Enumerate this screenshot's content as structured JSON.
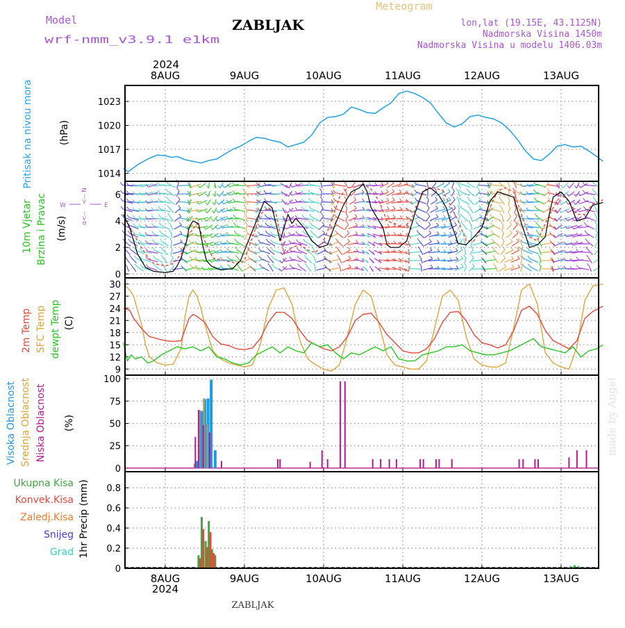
{
  "header": {
    "model_label": "Model",
    "model_name": "wrf-nmm_v3.9.1 e1km",
    "station": "ZABLJAK",
    "title": "Meteogram",
    "coords": "lon,lat (19.15E, 43.1125N)",
    "altitude": "Nadmorska Visina 1450m",
    "model_altitude": "Nadmorska Visina u modelu 1406.03m",
    "credit": "made by Angel",
    "footer_station": "ZABLJAK"
  },
  "colors": {
    "pressure": "#2aa6e6",
    "temp2m": "#e8473a",
    "sfc": "#e0a43a",
    "dewpt": "#26c81f",
    "high_cloud": "#1e9be6",
    "mid_cloud": "#9a9a72",
    "low_cloud": "#b8198c",
    "total_precip": "#3fa83f",
    "conv_precip": "#e8473a",
    "frozen_precip": "#f07a2a",
    "snow": "#4a3ad8",
    "hail": "#3ad0c0",
    "wind_speed": "#000000",
    "wind_gust": "#e8473a",
    "purple_text": "#a855d8",
    "gold_text": "#e6c27a"
  },
  "time_axis": {
    "year": "2024",
    "day_labels": [
      "8AUG",
      "9AUG",
      "10AUG",
      "11AUG",
      "12AUG",
      "13AUG"
    ]
  },
  "wind_compass": {
    "west": "W",
    "east": "E",
    "north_marker": "<-- N",
    "alpha_marker": "α<--"
  },
  "chart_data": [
    {
      "type": "line",
      "panel": "pressure",
      "ylabel": "Pritisak na nivou mora",
      "unit": "(hPa)",
      "yticks": [
        1014,
        1017,
        1020,
        1023
      ],
      "ylim": [
        1013,
        1025
      ],
      "xlim": [
        -0.53,
        5.53
      ],
      "grid": true,
      "series": [
        {
          "name": "Pritisak na nivou mora",
          "x": [
            -0.53,
            -0.47,
            -0.4,
            -0.33,
            -0.2,
            -0.1,
            0.0,
            0.08,
            0.15,
            0.25,
            0.35,
            0.45,
            0.55,
            0.65,
            0.75,
            0.85,
            0.95,
            1.05,
            1.15,
            1.25,
            1.35,
            1.45,
            1.55,
            1.65,
            1.75,
            1.85,
            1.95,
            2.05,
            2.15,
            2.25,
            2.35,
            2.45,
            2.55,
            2.65,
            2.75,
            2.85,
            2.95,
            3.05,
            3.15,
            3.25,
            3.35,
            3.45,
            3.55,
            3.65,
            3.75,
            3.85,
            3.95,
            4.05,
            4.15,
            4.25,
            4.35,
            4.45,
            4.55,
            4.65,
            4.75,
            4.85,
            4.95,
            5.05,
            5.15,
            5.25,
            5.35,
            5.45,
            5.53
          ],
          "y": [
            1014.6,
            1014.2,
            1014.7,
            1015.2,
            1015.9,
            1016.3,
            1016.2,
            1016.0,
            1016.1,
            1015.7,
            1015.5,
            1015.3,
            1015.6,
            1015.8,
            1016.4,
            1017.0,
            1017.4,
            1018.0,
            1018.5,
            1018.4,
            1018.1,
            1017.9,
            1017.3,
            1017.6,
            1017.9,
            1018.8,
            1020.3,
            1021.0,
            1021.1,
            1021.4,
            1022.3,
            1022.0,
            1021.6,
            1021.5,
            1022.2,
            1022.8,
            1024.0,
            1024.3,
            1024.0,
            1023.5,
            1022.8,
            1021.5,
            1020.3,
            1019.8,
            1020.2,
            1021.1,
            1021.3,
            1021.0,
            1020.8,
            1020.3,
            1019.4,
            1018.2,
            1016.8,
            1015.8,
            1015.6,
            1016.4,
            1017.4,
            1017.6,
            1017.3,
            1017.4,
            1016.8,
            1016.1,
            1015.5
          ]
        }
      ]
    },
    {
      "type": "line",
      "panel": "wind",
      "ylabel": "10m Vjetar",
      "ylabel2": "Brzina i Pravac",
      "unit": "(m/s)",
      "yticks": [
        0,
        2,
        4,
        6
      ],
      "ylim": [
        -0.3,
        7
      ],
      "xlim": [
        -0.53,
        5.53
      ],
      "grid": true,
      "series": [
        {
          "name": "speed",
          "x": [
            -0.53,
            -0.45,
            -0.35,
            -0.25,
            -0.15,
            0.0,
            0.1,
            0.15,
            0.2,
            0.27,
            0.3,
            0.35,
            0.42,
            0.48,
            0.52,
            0.58,
            0.7,
            0.85,
            0.95,
            1.05,
            1.15,
            1.25,
            1.35,
            1.45,
            1.55,
            1.6,
            1.65,
            1.75,
            1.85,
            1.95,
            2.05,
            2.15,
            2.25,
            2.35,
            2.45,
            2.5,
            2.55,
            2.6,
            2.7,
            2.75,
            2.8,
            2.85,
            2.95,
            3.05,
            3.15,
            3.25,
            3.35,
            3.45,
            3.55,
            3.6,
            3.7,
            3.8,
            3.9,
            4.0,
            4.1,
            4.2,
            4.3,
            4.4,
            4.5,
            4.6,
            4.7,
            4.8,
            4.85,
            4.9,
            5.0,
            5.1,
            5.2,
            5.3,
            5.4,
            5.53
          ],
          "y": [
            4.5,
            3.5,
            1.5,
            0.5,
            0.2,
            0.1,
            0.2,
            0.6,
            1.2,
            2.5,
            3.5,
            4.0,
            3.8,
            2.0,
            1.0,
            0.6,
            0.3,
            0.4,
            1.0,
            2.5,
            4.0,
            5.5,
            5.0,
            2.5,
            4.5,
            3.8,
            4.2,
            3.5,
            2.5,
            2.0,
            2.2,
            3.8,
            5.2,
            6.2,
            6.5,
            6.8,
            6.2,
            5.0,
            4.0,
            3.5,
            2.2,
            2.0,
            2.0,
            2.5,
            4.5,
            6.2,
            6.5,
            6.0,
            5.0,
            4.0,
            2.3,
            2.2,
            2.8,
            3.5,
            5.5,
            6.2,
            6.0,
            5.8,
            3.8,
            2.0,
            2.2,
            2.8,
            4.5,
            5.8,
            6.2,
            5.5,
            4.0,
            4.2,
            5.2,
            5.4
          ]
        },
        {
          "name": "gust",
          "x": [
            -0.53,
            -0.45,
            -0.35,
            -0.25,
            -0.15,
            0.0,
            0.1,
            0.2,
            0.3,
            0.4,
            0.5,
            0.6,
            0.75,
            0.9,
            1.0,
            1.1,
            1.2,
            1.3,
            1.4,
            1.5,
            1.6,
            1.7,
            1.8,
            1.9,
            2.0,
            2.1,
            2.2,
            2.3,
            2.4,
            2.5,
            2.6,
            2.7,
            2.8,
            2.9,
            3.0,
            3.1,
            3.2,
            3.3,
            3.4,
            3.5,
            3.6,
            3.7,
            3.8,
            3.9,
            4.0,
            4.1,
            4.2,
            4.3,
            4.4,
            4.5,
            4.6,
            4.7,
            4.8,
            4.9,
            5.0,
            5.1,
            5.2,
            5.3,
            5.4,
            5.53
          ],
          "y": [
            3.8,
            3.5,
            2.5,
            1.5,
            0.8,
            0.6,
            0.8,
            1.5,
            3.0,
            3.8,
            2.5,
            1.2,
            1.0,
            0.8,
            1.0,
            2.8,
            4.5,
            5.0,
            4.5,
            1.5,
            2.0,
            2.2,
            1.8,
            1.6,
            2.5,
            4.0,
            5.8,
            6.5,
            6.6,
            6.8,
            6.4,
            5.5,
            4.0,
            3.8,
            3.5,
            4.0,
            5.5,
            6.5,
            6.5,
            6.3,
            5.2,
            4.0,
            2.5,
            2.5,
            3.5,
            5.0,
            6.3,
            6.5,
            6.2,
            4.5,
            2.8,
            2.5,
            3.8,
            5.0,
            6.0,
            5.5,
            4.5,
            4.5,
            5.3,
            5.6
          ]
        }
      ]
    },
    {
      "type": "line",
      "panel": "temperature",
      "ylabel": "2m Temp",
      "ylabel2": "SFC Temp",
      "ylabel3": "dewpt Temp",
      "unit": "(C)",
      "yticks": [
        9,
        12,
        15,
        18,
        21,
        24,
        27,
        30
      ],
      "ylim": [
        7.5,
        31.5
      ],
      "xlim": [
        -0.53,
        5.53
      ],
      "grid": true,
      "series": [
        {
          "name": "2m Temp",
          "x": [
            -0.53,
            -0.45,
            -0.4,
            -0.3,
            -0.2,
            -0.1,
            0.0,
            0.1,
            0.2,
            0.3,
            0.35,
            0.4,
            0.5,
            0.6,
            0.7,
            0.8,
            0.9,
            1.0,
            1.1,
            1.2,
            1.3,
            1.4,
            1.5,
            1.6,
            1.7,
            1.8,
            1.9,
            2.0,
            2.1,
            2.2,
            2.3,
            2.4,
            2.5,
            2.6,
            2.7,
            2.8,
            2.9,
            3.0,
            3.1,
            3.2,
            3.3,
            3.4,
            3.5,
            3.6,
            3.7,
            3.8,
            3.9,
            4.0,
            4.1,
            4.2,
            4.3,
            4.4,
            4.5,
            4.6,
            4.7,
            4.8,
            4.9,
            5.0,
            5.1,
            5.2,
            5.3,
            5.4,
            5.53
          ],
          "y": [
            24.0,
            23.5,
            21.5,
            19.0,
            17.0,
            16.5,
            16.0,
            15.8,
            16.0,
            21.5,
            22.5,
            22.0,
            20.5,
            17.0,
            15.2,
            14.8,
            14.0,
            13.8,
            14.2,
            16.5,
            20.5,
            23.0,
            23.0,
            21.5,
            18.5,
            16.0,
            15.0,
            14.0,
            13.5,
            14.5,
            17.0,
            21.0,
            22.5,
            22.8,
            20.5,
            17.5,
            15.5,
            13.5,
            13.0,
            13.0,
            14.0,
            16.5,
            20.5,
            23.0,
            23.2,
            21.0,
            17.5,
            15.5,
            15.0,
            14.2,
            15.0,
            18.5,
            23.5,
            24.5,
            22.5,
            18.5,
            16.0,
            15.0,
            14.0,
            16.0,
            21.5,
            23.2,
            24.5
          ]
        },
        {
          "name": "SFC Temp",
          "x": [
            -0.53,
            -0.45,
            -0.4,
            -0.3,
            -0.25,
            -0.2,
            -0.1,
            0.0,
            0.1,
            0.2,
            0.25,
            0.3,
            0.35,
            0.4,
            0.45,
            0.5,
            0.6,
            0.7,
            0.8,
            0.9,
            1.0,
            1.1,
            1.2,
            1.3,
            1.4,
            1.5,
            1.6,
            1.7,
            1.8,
            1.9,
            2.0,
            2.1,
            2.2,
            2.3,
            2.4,
            2.5,
            2.6,
            2.7,
            2.8,
            2.9,
            3.0,
            3.1,
            3.2,
            3.3,
            3.4,
            3.5,
            3.6,
            3.7,
            3.8,
            3.9,
            4.0,
            4.1,
            4.2,
            4.3,
            4.4,
            4.5,
            4.6,
            4.7,
            4.8,
            4.9,
            5.0,
            5.1,
            5.2,
            5.3,
            5.4,
            5.53
          ],
          "y": [
            30.0,
            28.5,
            27.0,
            20.0,
            15.0,
            12.0,
            10.5,
            10.0,
            10.2,
            14.0,
            22.0,
            27.0,
            28.5,
            27.0,
            24.0,
            20.0,
            13.5,
            11.5,
            10.5,
            10.0,
            9.5,
            10.0,
            15.0,
            24.0,
            28.5,
            29.0,
            25.0,
            16.0,
            11.5,
            10.0,
            9.0,
            8.5,
            10.0,
            17.0,
            25.0,
            28.5,
            27.0,
            20.0,
            12.5,
            10.0,
            9.5,
            9.0,
            9.0,
            11.0,
            19.0,
            27.0,
            28.5,
            26.0,
            17.0,
            11.5,
            10.0,
            9.5,
            9.5,
            10.5,
            19.0,
            28.5,
            30.0,
            25.0,
            13.0,
            10.5,
            9.5,
            9.0,
            14.5,
            26.0,
            29.5,
            30.0
          ]
        },
        {
          "name": "dewpt Temp",
          "x": [
            -0.53,
            -0.48,
            -0.43,
            -0.38,
            -0.3,
            -0.22,
            -0.15,
            -0.05,
            0.05,
            0.15,
            0.25,
            0.35,
            0.45,
            0.55,
            0.65,
            0.75,
            0.85,
            0.95,
            1.05,
            1.15,
            1.25,
            1.35,
            1.45,
            1.55,
            1.65,
            1.75,
            1.85,
            1.95,
            2.05,
            2.15,
            2.25,
            2.35,
            2.45,
            2.55,
            2.65,
            2.75,
            2.85,
            2.95,
            3.05,
            3.15,
            3.25,
            3.35,
            3.45,
            3.55,
            3.65,
            3.75,
            3.85,
            3.95,
            4.05,
            4.15,
            4.25,
            4.35,
            4.45,
            4.55,
            4.65,
            4.75,
            4.85,
            4.95,
            5.05,
            5.15,
            5.25,
            5.35,
            5.45,
            5.53
          ],
          "y": [
            15.5,
            11.0,
            12.5,
            11.5,
            12.0,
            10.5,
            11.0,
            12.5,
            13.5,
            14.5,
            14.0,
            14.5,
            13.5,
            14.5,
            12.0,
            11.5,
            10.5,
            10.0,
            10.5,
            12.5,
            13.5,
            14.5,
            13.0,
            14.5,
            13.5,
            13.0,
            15.5,
            14.5,
            15.0,
            13.0,
            11.5,
            13.0,
            12.5,
            13.5,
            14.5,
            13.5,
            14.5,
            11.5,
            11.0,
            11.0,
            12.5,
            13.0,
            13.5,
            14.5,
            14.5,
            15.0,
            13.5,
            13.0,
            12.5,
            12.5,
            13.0,
            13.5,
            14.5,
            15.5,
            16.5,
            14.5,
            14.0,
            13.5,
            13.0,
            14.5,
            12.0,
            13.5,
            14.0,
            15.0
          ]
        }
      ]
    },
    {
      "type": "bar",
      "panel": "cloud",
      "ylabel": "Visoka Oblacnost",
      "ylabel2": "Srednja Oblacnost",
      "ylabel3": "Niska Oblacnost",
      "unit": "(%)",
      "yticks": [
        0,
        25,
        50,
        75,
        100
      ],
      "ylim": [
        -4,
        104
      ],
      "xlim": [
        -0.53,
        5.53
      ],
      "grid": true,
      "series": [
        {
          "name": "Visoka Oblacnost",
          "x": [
            0.4,
            0.46,
            0.5,
            0.54,
            0.58,
            0.63
          ],
          "values": [
            8,
            64,
            77,
            78,
            99,
            20
          ]
        },
        {
          "name": "Srednja Oblacnost",
          "x": [
            0.37,
            0.43,
            0.49,
            0.53
          ],
          "values": [
            5,
            65,
            78,
            50
          ]
        },
        {
          "name": "Niska Oblacnost",
          "x": [
            0.38,
            0.42,
            0.48,
            0.56,
            0.71,
            1.42,
            1.45,
            1.83,
            1.98,
            2.05,
            2.21,
            2.27,
            2.62,
            2.72,
            2.83,
            2.92,
            3.22,
            3.26,
            3.42,
            3.46,
            3.62,
            4.47,
            4.52,
            4.67,
            4.71,
            5.1,
            5.2,
            5.32
          ],
          "values": [
            35,
            65,
            48,
            40,
            8,
            10,
            10,
            7,
            20,
            10,
            97,
            97,
            10,
            10,
            10,
            10,
            10,
            10,
            10,
            10,
            10,
            10,
            10,
            10,
            10,
            12,
            20,
            20
          ]
        }
      ]
    },
    {
      "type": "bar",
      "panel": "precipitation",
      "ylabel": "1hr Precip (mm)",
      "yticks": [
        0,
        0.2,
        0.4,
        0.6,
        0.8
      ],
      "ylim": [
        0,
        0.96
      ],
      "xlim": [
        -0.53,
        5.53
      ],
      "grid": true,
      "legend": [
        "Ukupna Kisa",
        "Konvek.Kisa",
        "Zaledj.Kisa",
        "Snijeg",
        "Grad"
      ],
      "series": [
        {
          "name": "Ukupna Kisa",
          "x": [
            0.42,
            0.46,
            0.51,
            0.55,
            0.59,
            0.63,
            1.72,
            2.75,
            5.12,
            5.17,
            5.22
          ],
          "values": [
            0.13,
            0.51,
            0.27,
            0.47,
            0.19,
            0.13,
            0.01,
            0.01,
            0.02,
            0.03,
            0.02
          ]
        },
        {
          "name": "Konvek.Kisa",
          "x": [
            0.44,
            0.48,
            0.53,
            0.57,
            0.61
          ],
          "values": [
            0.1,
            0.39,
            0.21,
            0.36,
            0.15
          ]
        }
      ]
    }
  ]
}
